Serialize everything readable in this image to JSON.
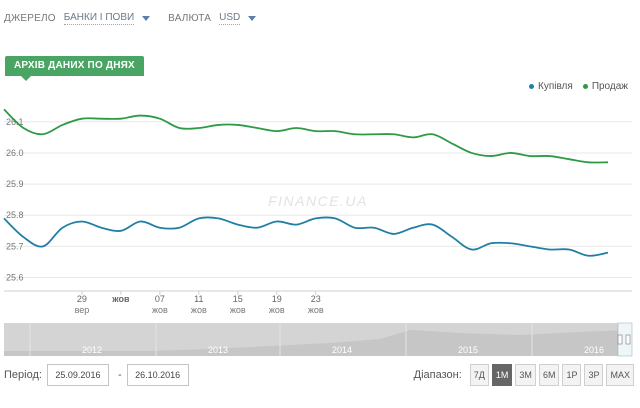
{
  "filters": {
    "source_label": "ДЖЕРЕЛО",
    "source_value": "БАНКИ І ПОВИ",
    "currency_label": "ВАЛЮТА",
    "currency_value": "USD"
  },
  "archive_tab": "АРХІВ ДАНИХ ПО ДНЯХ",
  "legend": {
    "buy": "Купівля",
    "sell": "Продаж"
  },
  "watermark": "FINANCE.UA",
  "navigator_years": [
    "2012",
    "2013",
    "2014",
    "2015",
    "2016"
  ],
  "period": {
    "label": "Період:",
    "from": "25.09.2016",
    "to": "26.10.2016",
    "separator": "-"
  },
  "range": {
    "label": "Діапазон:",
    "buttons": [
      "7Д",
      "1М",
      "3М",
      "6М",
      "1Р",
      "3Р",
      "MAX"
    ],
    "active": "1М"
  },
  "colors": {
    "buy": "#217ea4",
    "sell": "#2d9a46",
    "accent": "#4aa564"
  },
  "chart_data": {
    "type": "line",
    "x": [
      25,
      26,
      27,
      28,
      29,
      30,
      31,
      32,
      33,
      34,
      35,
      36,
      37,
      38,
      39,
      40,
      41,
      42,
      43,
      44,
      45,
      46,
      47,
      48,
      49,
      50,
      51,
      52,
      53,
      54,
      55,
      56
    ],
    "x_ticks": [
      {
        "x": 29,
        "label": "29",
        "sub": "вер"
      },
      {
        "x": 31,
        "label": "жов",
        "sub": ""
      },
      {
        "x": 33,
        "label": "07",
        "sub": "жов"
      },
      {
        "x": 35,
        "label": "11",
        "sub": "жов"
      },
      {
        "x": 37,
        "label": "15",
        "sub": "жов"
      },
      {
        "x": 39,
        "label": "19",
        "sub": "жов"
      },
      {
        "x": 41,
        "label": "23",
        "sub": "жов"
      }
    ],
    "y_ticks": [
      25.6,
      25.7,
      25.8,
      25.9,
      26.0,
      26.1
    ],
    "ylim": [
      25.56,
      26.17
    ],
    "series": [
      {
        "name": "Продаж",
        "key": "sell",
        "values": [
          26.14,
          26.08,
          26.06,
          26.09,
          26.11,
          26.11,
          26.11,
          26.12,
          26.11,
          26.08,
          26.08,
          26.09,
          26.09,
          26.08,
          26.07,
          26.08,
          26.07,
          26.07,
          26.06,
          26.06,
          26.06,
          26.05,
          26.06,
          26.03,
          26.0,
          25.99,
          26.0,
          25.99,
          25.99,
          25.98,
          25.97,
          25.97
        ]
      },
      {
        "name": "Купівля",
        "key": "buy",
        "values": [
          25.79,
          25.73,
          25.7,
          25.76,
          25.78,
          25.76,
          25.75,
          25.78,
          25.76,
          25.76,
          25.79,
          25.79,
          25.77,
          25.76,
          25.78,
          25.77,
          25.79,
          25.79,
          25.76,
          25.76,
          25.74,
          25.76,
          25.77,
          25.73,
          25.69,
          25.71,
          25.71,
          25.7,
          25.69,
          25.69,
          25.67,
          25.68
        ]
      }
    ]
  }
}
